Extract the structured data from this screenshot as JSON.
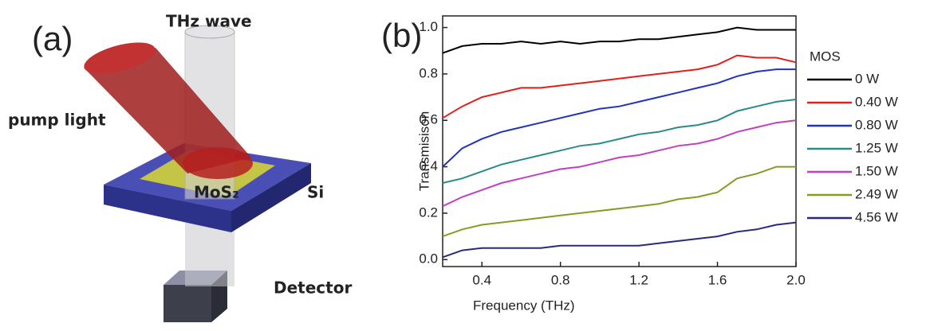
{
  "diagram": {
    "label": "(a)",
    "wave": "THz wave",
    "pump": "pump light",
    "film": "MoS₂",
    "substrate": "Si",
    "detector": "Detector"
  },
  "chart_data": {
    "type": "line",
    "panel_label": "(b)",
    "xlabel": "Frequency (THz)",
    "ylabel": "Transmisison",
    "legend_title": "MOS",
    "x": [
      0.2,
      0.3,
      0.4,
      0.5,
      0.6,
      0.7,
      0.8,
      0.9,
      1.0,
      1.1,
      1.2,
      1.3,
      1.4,
      1.5,
      1.6,
      1.7,
      1.8,
      1.9,
      2.0
    ],
    "series": [
      {
        "name": "0 W",
        "color": "#000000",
        "values": [
          0.89,
          0.92,
          0.93,
          0.93,
          0.94,
          0.93,
          0.94,
          0.93,
          0.94,
          0.94,
          0.95,
          0.95,
          0.96,
          0.97,
          0.98,
          1.0,
          0.99,
          0.99,
          0.99
        ]
      },
      {
        "name": "0.40 W",
        "color": "#e0201b",
        "values": [
          0.61,
          0.66,
          0.7,
          0.72,
          0.74,
          0.74,
          0.75,
          0.76,
          0.77,
          0.78,
          0.79,
          0.8,
          0.81,
          0.82,
          0.84,
          0.88,
          0.87,
          0.87,
          0.85
        ]
      },
      {
        "name": "0.80 W",
        "color": "#2233bb",
        "values": [
          0.4,
          0.48,
          0.52,
          0.55,
          0.57,
          0.59,
          0.61,
          0.63,
          0.65,
          0.66,
          0.68,
          0.7,
          0.72,
          0.74,
          0.76,
          0.79,
          0.81,
          0.82,
          0.82
        ]
      },
      {
        "name": "1.25 W",
        "color": "#2a8a8a",
        "values": [
          0.33,
          0.35,
          0.38,
          0.41,
          0.43,
          0.45,
          0.47,
          0.49,
          0.5,
          0.52,
          0.54,
          0.55,
          0.57,
          0.58,
          0.6,
          0.64,
          0.66,
          0.68,
          0.69
        ]
      },
      {
        "name": "1.50 W",
        "color": "#c040c0",
        "values": [
          0.23,
          0.27,
          0.3,
          0.33,
          0.35,
          0.37,
          0.39,
          0.4,
          0.42,
          0.44,
          0.45,
          0.47,
          0.49,
          0.5,
          0.52,
          0.55,
          0.57,
          0.59,
          0.6
        ]
      },
      {
        "name": "2.49 W",
        "color": "#8a9a20",
        "values": [
          0.1,
          0.13,
          0.15,
          0.16,
          0.17,
          0.18,
          0.19,
          0.2,
          0.21,
          0.22,
          0.23,
          0.24,
          0.26,
          0.27,
          0.29,
          0.35,
          0.37,
          0.4,
          0.4
        ]
      },
      {
        "name": "4.56 W",
        "color": "#2a2a7a",
        "values": [
          0.01,
          0.04,
          0.05,
          0.05,
          0.05,
          0.05,
          0.06,
          0.06,
          0.06,
          0.06,
          0.06,
          0.07,
          0.08,
          0.09,
          0.1,
          0.12,
          0.13,
          0.15,
          0.16
        ]
      }
    ],
    "xlim": [
      0.2,
      2.0
    ],
    "ylim": [
      -0.03,
      1.05
    ],
    "xticks": [
      0.4,
      0.8,
      1.2,
      1.6,
      {
        "value": 2,
        "label": "2.0"
      }
    ],
    "yticks": [
      {
        "value": 0,
        "label": "0.0"
      },
      0.2,
      0.4,
      0.6,
      0.8,
      {
        "value": 1,
        "label": "1.0"
      }
    ]
  }
}
